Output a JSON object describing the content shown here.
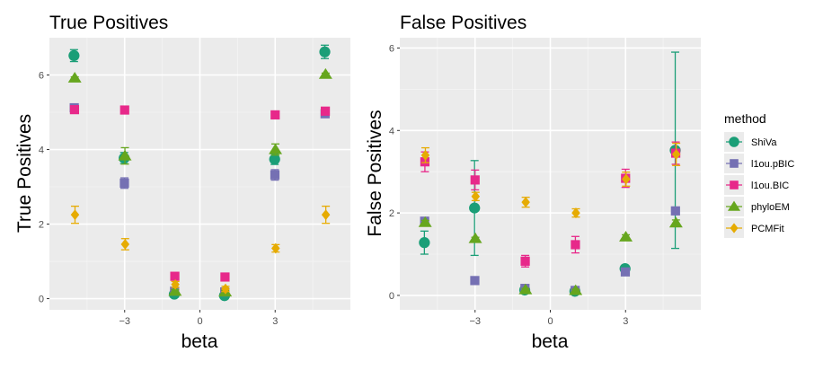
{
  "legend": {
    "title": "method",
    "items": [
      {
        "name": "ShiVa",
        "color": "#1b9e77",
        "shape": "circle"
      },
      {
        "name": "l1ou.pBIC",
        "color": "#7570b3",
        "shape": "square"
      },
      {
        "name": "l1ou.BIC",
        "color": "#e7298a",
        "shape": "square"
      },
      {
        "name": "phyloEM",
        "color": "#66a61e",
        "shape": "triangle"
      },
      {
        "name": "PCMFit",
        "color": "#e6ab02",
        "shape": "diamond"
      }
    ]
  },
  "chart_data": [
    {
      "type": "scatter",
      "title": "True Positives",
      "xlabel": "beta",
      "ylabel": "True Positives",
      "xlim": [
        -6,
        6
      ],
      "ylim": [
        -0.3,
        7.0
      ],
      "x_ticks": [
        -3,
        0,
        3
      ],
      "x_tick_labels": [
        "−3",
        "0",
        "3"
      ],
      "y_ticks": [
        0,
        2,
        4,
        6
      ],
      "y_tick_labels": [
        "0",
        "2",
        "4",
        "6"
      ],
      "x_groups": [
        -5,
        -3,
        -1,
        1,
        3,
        5
      ],
      "dodge": 0.01,
      "series": [
        {
          "name": "ShiVa",
          "values": [
            6.52,
            3.77,
            0.12,
            0.08,
            3.74,
            6.62
          ],
          "errors": [
            0.16,
            0.15,
            0.04,
            0.04,
            0.14,
            0.18
          ]
        },
        {
          "name": "l1ou.pBIC",
          "values": [
            5.12,
            3.1,
            0.2,
            0.18,
            3.32,
            4.96
          ],
          "errors": [
            0.05,
            0.14,
            0.04,
            0.04,
            0.14,
            0.05
          ]
        },
        {
          "name": "l1ou.BIC",
          "values": [
            5.07,
            5.06,
            0.6,
            0.58,
            4.93,
            5.03
          ],
          "errors": [
            0.04,
            0.04,
            0.05,
            0.05,
            0.04,
            0.04
          ]
        },
        {
          "name": "phyloEM",
          "values": [
            5.92,
            3.83,
            0.2,
            0.18,
            4.0,
            6.02
          ],
          "errors": [
            0.03,
            0.22,
            0.04,
            0.04,
            0.15,
            0.03
          ]
        },
        {
          "name": "PCMFit",
          "values": [
            2.25,
            1.46,
            0.38,
            0.26,
            1.35,
            2.25
          ],
          "errors": [
            0.23,
            0.15,
            0.08,
            0.07,
            0.1,
            0.23
          ]
        }
      ]
    },
    {
      "type": "scatter",
      "title": "False Positives",
      "xlabel": "beta",
      "ylabel": "False Positives",
      "xlim": [
        -6,
        6
      ],
      "ylim": [
        -0.35,
        6.25
      ],
      "x_ticks": [
        -3,
        0,
        3
      ],
      "x_tick_labels": [
        "−3",
        "0",
        "3"
      ],
      "y_ticks": [
        0,
        2,
        4,
        6
      ],
      "y_tick_labels": [
        "0",
        "2",
        "4",
        "6"
      ],
      "x_groups": [
        -5,
        -3,
        -1,
        1,
        3,
        5
      ],
      "dodge": 0.01,
      "series": [
        {
          "name": "ShiVa",
          "values": [
            1.28,
            2.12,
            0.13,
            0.1,
            0.65,
            3.52
          ],
          "errors": [
            0.28,
            1.15,
            0.04,
            0.03,
            0.05,
            2.38
          ]
        },
        {
          "name": "l1ou.pBIC",
          "values": [
            1.8,
            0.36,
            0.17,
            0.12,
            0.57,
            2.05
          ],
          "errors": [
            0.05,
            0.03,
            0.04,
            0.03,
            0.05,
            0.08
          ]
        },
        {
          "name": "l1ou.BIC",
          "values": [
            3.24,
            2.8,
            0.83,
            1.23,
            2.84,
            3.45
          ],
          "errors": [
            0.24,
            0.24,
            0.14,
            0.2,
            0.22,
            0.27
          ]
        },
        {
          "name": "phyloEM",
          "values": [
            1.77,
            1.38,
            0.14,
            0.12,
            1.42,
            1.76
          ],
          "errors": [
            0.05,
            0.03,
            0.03,
            0.03,
            0.05,
            0.07
          ]
        },
        {
          "name": "PCMFit",
          "values": [
            3.4,
            2.4,
            2.26,
            2.0,
            2.82,
            3.42
          ],
          "errors": [
            0.18,
            0.1,
            0.12,
            0.1,
            0.17,
            0.27
          ]
        }
      ]
    }
  ]
}
